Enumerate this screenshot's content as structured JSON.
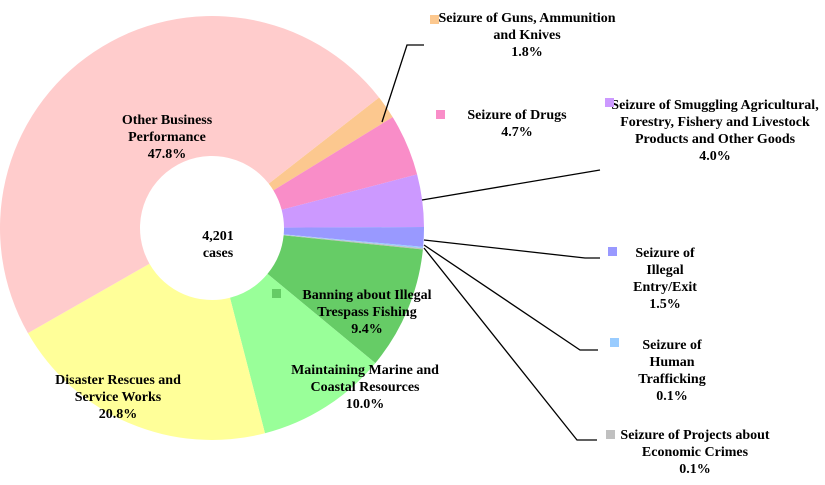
{
  "chart_data": {
    "type": "donut",
    "center_text": "4,201",
    "center_subtext": "cases",
    "categories": [
      "Seizure of Guns, Ammunition and Knives",
      "Seizure of Drugs",
      "Seizure of Smuggling Agricultural, Forestry, Fishery and Livestock Products and Other Goods",
      "Seizure of Illegal Entry/Exit",
      "Seizure of Human Trafficking",
      "Seizure of Projects about Economic Crimes",
      "Banning about Illegal Trespass Fishing",
      "Maintaining Marine and Coastal Resources",
      "Disaster Rescues and Service Works",
      "Other Business Performance"
    ],
    "values": [
      1.8,
      4.7,
      4.0,
      1.5,
      0.1,
      0.1,
      9.4,
      10.0,
      20.8,
      47.8
    ],
    "value_labels": [
      "1.8%",
      "4.7%",
      "4.0%",
      "1.5%",
      "0.1%",
      "0.1%",
      "9.4%",
      "10.0%",
      "20.8%",
      "47.8%"
    ],
    "colors": [
      "#fcc88f",
      "#f98dc8",
      "#cc99ff",
      "#9999ff",
      "#99ccff",
      "#c0c0c0",
      "#66cc66",
      "#99ff99",
      "#ffff99",
      "#ffcccc"
    ]
  }
}
